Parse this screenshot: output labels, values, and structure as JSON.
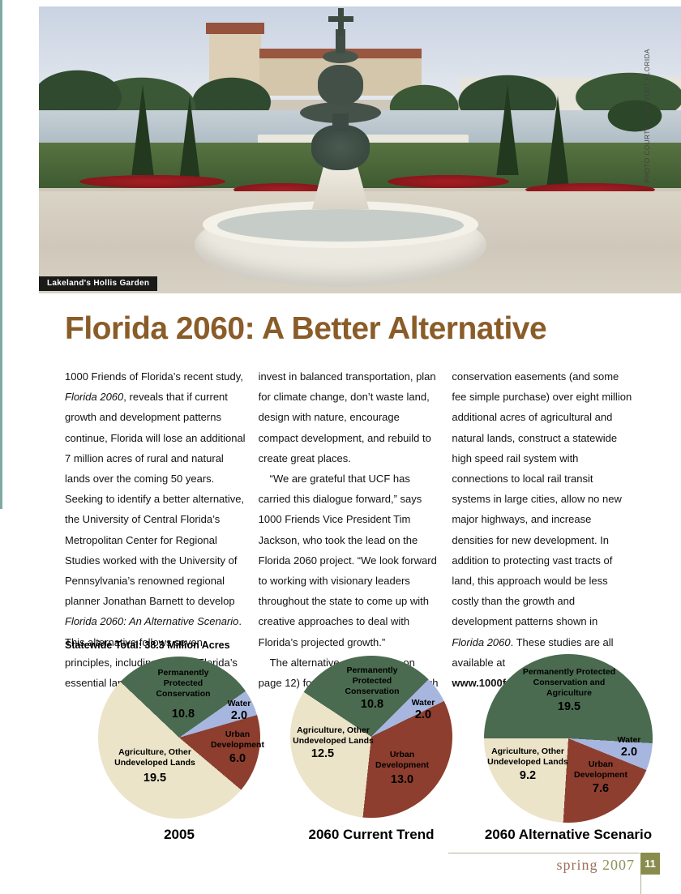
{
  "photo": {
    "caption": "Lakeland's Hollis Garden",
    "credit": "PHOTO COURTESY OF VISIT FLORIDA"
  },
  "headline": "Florida 2060: A Better Alternative",
  "article": {
    "columns": [
      [
        {
          "indent": false,
          "runs": [
            {
              "t": "1000 Friends of Florida’s recent study, "
            },
            {
              "t": "Florida 2060",
              "i": true
            },
            {
              "t": ", reveals that if current growth and development patterns continue, Florida will lose an additional 7 million acres of rural and natural lands over the coming 50 years.  Seeking to identify a better alternative, the University of Central Florida’s Metropolitan Center for Regional Studies worked with the University of Pennsylvania’s renowned regional planner Jonathan Barnett to develop "
            },
            {
              "t": "Florida 2060:  An Alternative Scenario",
              "i": true
            },
            {
              "t": ". This alternative follows seven principles, including: protect Florida’s essential land,"
            }
          ]
        }
      ],
      [
        {
          "indent": false,
          "runs": [
            {
              "t": "invest in balanced transportation, plan for climate change, don’t waste land, design with nature, encourage compact development, and rebuild to create great places."
            }
          ]
        },
        {
          "indent": true,
          "runs": [
            {
              "t": "“We are grateful that UCF has carried this dialogue forward,” says 1000 Friends Vice President Tim Jackson, who took the lead on the Florida 2060 project. “We look forward to working with visionary leaders throughout the state to come up with creative approaches to deal with Florida’s projected growth.”"
            }
          ]
        },
        {
          "indent": true,
          "runs": [
            {
              "t": "The alternative calls (shown on page 12) for Florida to acquire through"
            }
          ]
        }
      ],
      [
        {
          "indent": false,
          "runs": [
            {
              "t": "conservation easements (and some fee simple purchase) over eight million additional acres of agricultural and natural lands, construct a statewide high speed rail system with connections to local rail transit systems in large cities, allow no new major highways, and increase densities for new  development.  In addition to protecting vast tracts of land, this approach would be less costly than the growth and development patterns shown in "
            },
            {
              "t": "Florida 2060",
              "i": true
            },
            {
              "t": ". These studies are all available at "
            },
            {
              "t": "www.1000friendsofflorida.org.",
              "b": true,
              "link": true
            }
          ]
        }
      ]
    ]
  },
  "charts": {
    "statewide_total_label": "Statewide Total: 38.3 Million Acres"
  },
  "chart_data": [
    {
      "type": "pie",
      "title": "2005",
      "unit": "million acres",
      "total": 38.3,
      "start_angle_deg": -46.5,
      "slices": [
        {
          "label": "Permanently Protected Conservation",
          "value": 10.8,
          "display": "10.8",
          "color": "#4a6b4f"
        },
        {
          "label": "Water",
          "value": 2.0,
          "display": "2.0",
          "color": "#a7b6df"
        },
        {
          "label": "Urban Development",
          "value": 6.0,
          "display": "6.0",
          "color": "#8d3e2e"
        },
        {
          "label": "Agriculture, Other Undeveloped Lands",
          "value": 19.5,
          "display": "19.5",
          "color": "#ece4c9"
        }
      ]
    },
    {
      "type": "pie",
      "title": "2060 Current Trend",
      "unit": "million acres",
      "total": 38.3,
      "start_angle_deg": -56.5,
      "slices": [
        {
          "label": "Permanently Protected Conservation",
          "value": 10.8,
          "display": "10.8",
          "color": "#4a6b4f"
        },
        {
          "label": "Water",
          "value": 2.0,
          "display": "2.0",
          "color": "#a7b6df"
        },
        {
          "label": "Urban Development",
          "value": 13.0,
          "display": "13.0",
          "color": "#8d3e2e"
        },
        {
          "label": "Agriculture, Other Undeveloped Lands",
          "value": 12.5,
          "display": "12.5",
          "color": "#ece4c9"
        }
      ]
    },
    {
      "type": "pie",
      "title": "2060 Alternative Scenario",
      "unit": "million acres",
      "total": 38.3,
      "start_angle_deg": 270,
      "slices": [
        {
          "label": "Permanently Protected Conservation and Agriculture",
          "value": 19.5,
          "display": "19.5",
          "color": "#4a6b4f"
        },
        {
          "label": "Water",
          "value": 2.0,
          "display": "2.0",
          "color": "#a7b6df"
        },
        {
          "label": "Urban Development",
          "value": 7.6,
          "display": "7.6",
          "color": "#8d3e2e"
        },
        {
          "label": "Agriculture, Other Undeveloped Lands",
          "value": 9.2,
          "display": "9.2",
          "color": "#ece4c9"
        }
      ]
    }
  ],
  "footer": {
    "season": "spring",
    "year": "2007",
    "page_number": "11"
  }
}
